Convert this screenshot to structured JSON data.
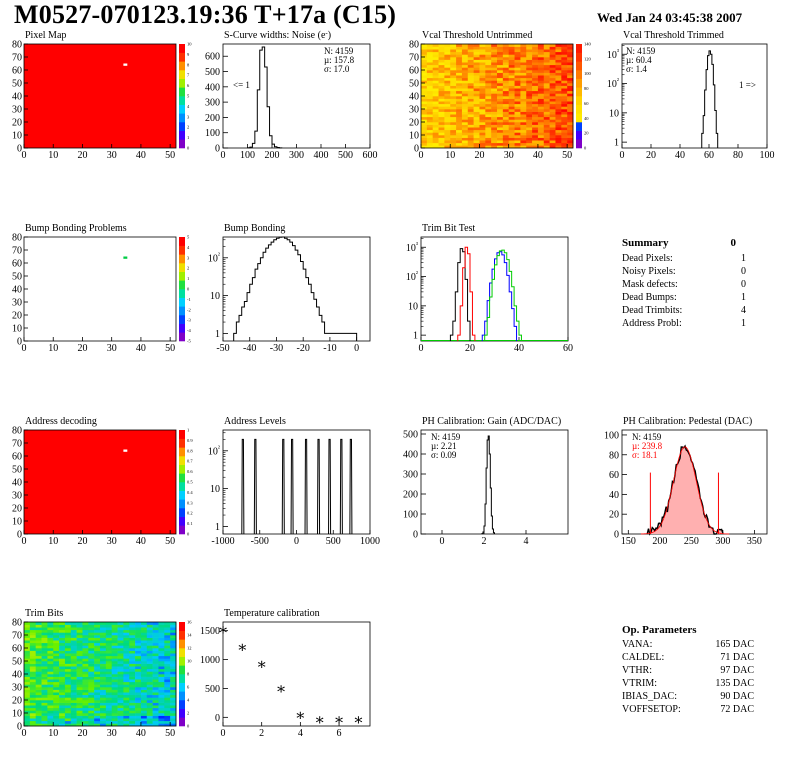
{
  "header": {
    "title": "M0527-070123.19:36 T+17a (C15)",
    "date": "Wed Jan 24 03:45:38 2007"
  },
  "chart_data": [
    {
      "id": "pixel-map",
      "type": "heatmap",
      "title": "Pixel Map",
      "xlim": [
        0,
        52
      ],
      "ylim": [
        0,
        80
      ],
      "xticks": [
        "0",
        "10",
        "20",
        "30",
        "40",
        "50"
      ],
      "yticks": [
        "0",
        "10",
        "20",
        "30",
        "40",
        "50",
        "60",
        "70",
        "80"
      ],
      "zticks": [
        "0",
        "1",
        "2",
        "3",
        "4",
        "5",
        "6",
        "7",
        "8",
        "9",
        "10"
      ],
      "fill_color": "#ff0000",
      "special_pixels": [
        {
          "col": 34,
          "row": 64
        }
      ]
    },
    {
      "id": "scurve-noise",
      "type": "histogram",
      "title": "S-Curve widths: Noise (e",
      "title_sup": "-",
      "title_end": ")",
      "xlim": [
        0,
        600
      ],
      "ylim": [
        0,
        680
      ],
      "xticks": [
        "0",
        "100",
        "200",
        "300",
        "400",
        "500",
        "600"
      ],
      "yticks": [
        "0",
        "100",
        "200",
        "300",
        "400",
        "500",
        "600"
      ],
      "stats": [
        "N: 4159",
        "µ: 157.8",
        "σ: 17.0"
      ],
      "annotation": "<= 1",
      "bins": [
        [
          100,
          2
        ],
        [
          110,
          6
        ],
        [
          120,
          30
        ],
        [
          130,
          110
        ],
        [
          140,
          380
        ],
        [
          150,
          640
        ],
        [
          160,
          660
        ],
        [
          170,
          530
        ],
        [
          180,
          270
        ],
        [
          190,
          80
        ],
        [
          200,
          25
        ],
        [
          210,
          8
        ],
        [
          220,
          3
        ],
        [
          230,
          1
        ]
      ],
      "bin_width": 10
    },
    {
      "id": "vcal-untrimmed",
      "type": "heatmap",
      "title": "Vcal Threshold Untrimmed",
      "xlim": [
        0,
        52
      ],
      "ylim": [
        0,
        80
      ],
      "xticks": [
        "0",
        "10",
        "20",
        "30",
        "40",
        "50"
      ],
      "yticks": [
        "0",
        "10",
        "20",
        "30",
        "40",
        "50",
        "60",
        "70",
        "80"
      ],
      "zticks": [
        "0",
        "20",
        "40",
        "60",
        "80",
        "100",
        "120",
        "140"
      ],
      "palette": "hot"
    },
    {
      "id": "vcal-trimmed",
      "type": "histogram",
      "title": "Vcal Threshold Trimmed",
      "log_y": true,
      "xlim": [
        0,
        100
      ],
      "xticks": [
        "0",
        "20",
        "40",
        "60",
        "80",
        "100"
      ],
      "yticks": [
        "1",
        "10",
        "10²",
        "10³"
      ],
      "stats": [
        "N: 4159",
        "µ: 60.4",
        "σ:  1.4"
      ],
      "annotation": "1 =>",
      "bins": [
        [
          55,
          2
        ],
        [
          56,
          8
        ],
        [
          57,
          60
        ],
        [
          58,
          300
        ],
        [
          59,
          900
        ],
        [
          60,
          1300
        ],
        [
          61,
          1000
        ],
        [
          62,
          450
        ],
        [
          63,
          90
        ],
        [
          64,
          12
        ],
        [
          65,
          2
        ]
      ],
      "bin_width": 1
    },
    {
      "id": "bump-bonding-problems",
      "type": "heatmap",
      "title": "Bump Bonding Problems",
      "xlim": [
        0,
        52
      ],
      "ylim": [
        0,
        80
      ],
      "xticks": [
        "0",
        "10",
        "20",
        "30",
        "40",
        "50"
      ],
      "yticks": [
        "0",
        "10",
        "20",
        "30",
        "40",
        "50",
        "60",
        "70",
        "80"
      ],
      "zticks": [
        "-5",
        "-4",
        "-3",
        "-2",
        "-1",
        "0",
        "1",
        "2",
        "3",
        "4",
        "5"
      ],
      "fill_color": "#ffffff",
      "special_pixels": [
        {
          "col": 34,
          "row": 64
        }
      ]
    },
    {
      "id": "bump-bonding",
      "type": "histogram",
      "title": "Bump Bonding",
      "log_y": true,
      "xlim": [
        -50,
        5
      ],
      "xticks": [
        "-50",
        "-40",
        "-30",
        "-20",
        "-10",
        "0"
      ],
      "yticks": [
        "1",
        "10",
        "10²"
      ],
      "bins": [
        [
          -46,
          1
        ],
        [
          -45,
          2
        ],
        [
          -44,
          3
        ],
        [
          -43,
          5
        ],
        [
          -42,
          7
        ],
        [
          -41,
          12
        ],
        [
          -40,
          20
        ],
        [
          -39,
          30
        ],
        [
          -38,
          50
        ],
        [
          -37,
          70
        ],
        [
          -36,
          100
        ],
        [
          -35,
          140
        ],
        [
          -34,
          180
        ],
        [
          -33,
          220
        ],
        [
          -32,
          260
        ],
        [
          -31,
          300
        ],
        [
          -30,
          330
        ],
        [
          -29,
          350
        ],
        [
          -28,
          360
        ],
        [
          -27,
          330
        ],
        [
          -26,
          300
        ],
        [
          -25,
          260
        ],
        [
          -24,
          210
        ],
        [
          -23,
          160
        ],
        [
          -22,
          120
        ],
        [
          -21,
          80
        ],
        [
          -20,
          50
        ],
        [
          -19,
          30
        ],
        [
          -18,
          20
        ],
        [
          -17,
          12
        ],
        [
          -16,
          8
        ],
        [
          -15,
          5
        ],
        [
          -14,
          3
        ],
        [
          -13,
          2
        ],
        [
          -12,
          1
        ],
        [
          -1,
          1
        ]
      ],
      "bin_width": 1
    },
    {
      "id": "trim-bit-test",
      "type": "histogram",
      "title": "Trim Bit Test",
      "log_y": true,
      "xlim": [
        0,
        60
      ],
      "xticks": [
        "0",
        "20",
        "40",
        "60"
      ],
      "yticks": [
        "1",
        "10",
        "10²",
        "10³"
      ],
      "series": [
        {
          "color": "#000000",
          "bins": [
            [
              12,
              1
            ],
            [
              13,
              3
            ],
            [
              14,
              30
            ],
            [
              15,
              300
            ],
            [
              16,
              900
            ],
            [
              17,
              700
            ],
            [
              18,
              80
            ],
            [
              19,
              3
            ]
          ]
        },
        {
          "color": "#ff0000",
          "bins": [
            [
              15,
              1
            ],
            [
              16,
              10
            ],
            [
              17,
              200
            ],
            [
              18,
              1000
            ],
            [
              19,
              600
            ],
            [
              20,
              30
            ],
            [
              21,
              1
            ]
          ]
        },
        {
          "color": "#0000ff",
          "bins": [
            [
              25,
              1
            ],
            [
              26,
              3
            ],
            [
              27,
              15
            ],
            [
              28,
              60
            ],
            [
              29,
              180
            ],
            [
              30,
              400
            ],
            [
              31,
              650
            ],
            [
              32,
              700
            ],
            [
              33,
              550
            ],
            [
              34,
              300
            ],
            [
              35,
              110
            ],
            [
              36,
              30
            ],
            [
              37,
              8
            ],
            [
              38,
              2
            ]
          ]
        },
        {
          "color": "#00cc00",
          "bins": [
            [
              26,
              1
            ],
            [
              27,
              4
            ],
            [
              28,
              20
            ],
            [
              29,
              80
            ],
            [
              30,
              250
            ],
            [
              31,
              520
            ],
            [
              32,
              750
            ],
            [
              33,
              800
            ],
            [
              34,
              650
            ],
            [
              35,
              380
            ],
            [
              36,
              150
            ],
            [
              37,
              45
            ],
            [
              38,
              10
            ],
            [
              39,
              3
            ],
            [
              40,
              1
            ]
          ]
        }
      ],
      "bin_width": 1
    },
    {
      "id": "address-decoding",
      "type": "heatmap",
      "title": "Address decoding",
      "xlim": [
        0,
        52
      ],
      "ylim": [
        0,
        80
      ],
      "xticks": [
        "0",
        "10",
        "20",
        "30",
        "40",
        "50"
      ],
      "yticks": [
        "0",
        "10",
        "20",
        "30",
        "40",
        "50",
        "60",
        "70",
        "80"
      ],
      "zticks": [
        "0",
        "0.1",
        "0.2",
        "0.3",
        "0.4",
        "0.5",
        "0.6",
        "0.7",
        "0.8",
        "0.9",
        "1"
      ],
      "fill_color": "#ff0000",
      "special_pixels": [
        {
          "col": 34,
          "row": 64
        }
      ]
    },
    {
      "id": "address-levels",
      "type": "histogram",
      "title": "Address Levels",
      "log_y": true,
      "xlim": [
        -1000,
        1000
      ],
      "xticks": [
        "-1000",
        "-500",
        "0",
        "500",
        "1000"
      ],
      "yticks": [
        "1",
        "10",
        "10²"
      ],
      "peaks": [
        -730,
        -560,
        -180,
        -60,
        130,
        300,
        450,
        610,
        740
      ],
      "peak_height": 200
    },
    {
      "id": "ph-gain",
      "type": "histogram",
      "title": "PH Calibration: Gain (ADC/DAC)",
      "xlim": [
        -1,
        6
      ],
      "ylim": [
        0,
        520
      ],
      "xticks": [
        "0",
        "2",
        "4"
      ],
      "yticks": [
        "0",
        "100",
        "200",
        "300",
        "400",
        "500"
      ],
      "stats": [
        "N: 4159",
        "µ: 2.21",
        "σ: 0.09"
      ],
      "bins": [
        [
          1.9,
          2
        ],
        [
          1.95,
          10
        ],
        [
          2.0,
          40
        ],
        [
          2.05,
          150
        ],
        [
          2.1,
          330
        ],
        [
          2.15,
          470
        ],
        [
          2.2,
          490
        ],
        [
          2.25,
          400
        ],
        [
          2.3,
          230
        ],
        [
          2.35,
          90
        ],
        [
          2.4,
          25
        ],
        [
          2.45,
          6
        ]
      ],
      "bin_width": 0.05
    },
    {
      "id": "ph-pedestal",
      "type": "histogram",
      "title": "PH Calibration: Pedestal (DAC)",
      "xlim": [
        140,
        370
      ],
      "ylim": [
        0,
        105
      ],
      "xticks": [
        "150",
        "200",
        "250",
        "300",
        "350"
      ],
      "yticks": [
        "0",
        "20",
        "40",
        "60",
        "80",
        "100"
      ],
      "stats": [
        "N: 4159",
        "µ: 239.8",
        "σ: 18.1"
      ],
      "stats_colors": [
        "#000000",
        "#ff0000",
        "#ff0000"
      ],
      "fit_mean": 239.8,
      "fit_sigma": 18.1,
      "fit_peak": 88,
      "cut_lines": [
        185,
        293
      ]
    },
    {
      "id": "trim-bits",
      "type": "heatmap",
      "title": "Trim Bits",
      "xlim": [
        0,
        52
      ],
      "ylim": [
        0,
        80
      ],
      "xticks": [
        "0",
        "10",
        "20",
        "30",
        "40",
        "50"
      ],
      "yticks": [
        "0",
        "10",
        "20",
        "30",
        "40",
        "50",
        "60",
        "70",
        "80"
      ],
      "zticks": [
        "0",
        "2",
        "4",
        "6",
        "8",
        "10",
        "12",
        "14",
        "16"
      ],
      "palette": "rainbow"
    },
    {
      "id": "temperature-calibration",
      "type": "scatter",
      "title": "Temperature calibration",
      "xlim": [
        0,
        7.6
      ],
      "ylim": [
        -150,
        1650
      ],
      "xticks": [
        "0",
        "2",
        "4",
        "6"
      ],
      "yticks": [
        "0",
        "500",
        "1000",
        "1500"
      ],
      "x": [
        0,
        1,
        2,
        3,
        4,
        5,
        6,
        7
      ],
      "y": [
        1530,
        1230,
        930,
        510,
        50,
        -30,
        -30,
        -30
      ]
    }
  ],
  "summary": {
    "title": "Summary",
    "total": "0",
    "rows": [
      {
        "label": "Dead Pixels:",
        "value": "1"
      },
      {
        "label": "Noisy Pixels:",
        "value": "0"
      },
      {
        "label": "Mask defects:",
        "value": "0"
      },
      {
        "label": "Dead Bumps:",
        "value": "1"
      },
      {
        "label": "Dead Trimbits:",
        "value": "4"
      },
      {
        "label": "Address Probl:",
        "value": "1"
      }
    ]
  },
  "op_parameters": {
    "title": "Op. Parameters",
    "rows": [
      {
        "label": "VANA:",
        "value": "165 DAC"
      },
      {
        "label": "CALDEL:",
        "value": "71 DAC"
      },
      {
        "label": "VTHR:",
        "value": "97 DAC"
      },
      {
        "label": "VTRIM:",
        "value": "135 DAC"
      },
      {
        "label": "IBIAS_DAC:",
        "value": "90 DAC"
      },
      {
        "label": "VOFFSETOP:",
        "value": "72 DAC"
      }
    ]
  }
}
